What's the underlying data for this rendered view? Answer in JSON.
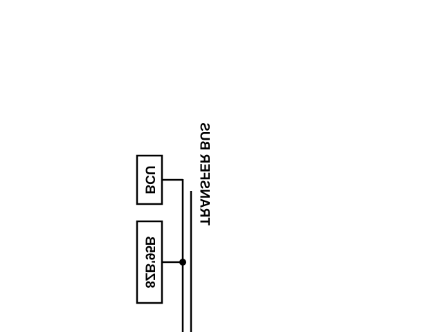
{
  "blocks": {
    "bcu": {
      "label": "BCU"
    },
    "reg": {
      "label": "8ZB'95B"
    }
  },
  "bus": {
    "label": "TRANSFER BUS"
  },
  "colors": {
    "ink": "#000000",
    "background": "#ffffff"
  }
}
